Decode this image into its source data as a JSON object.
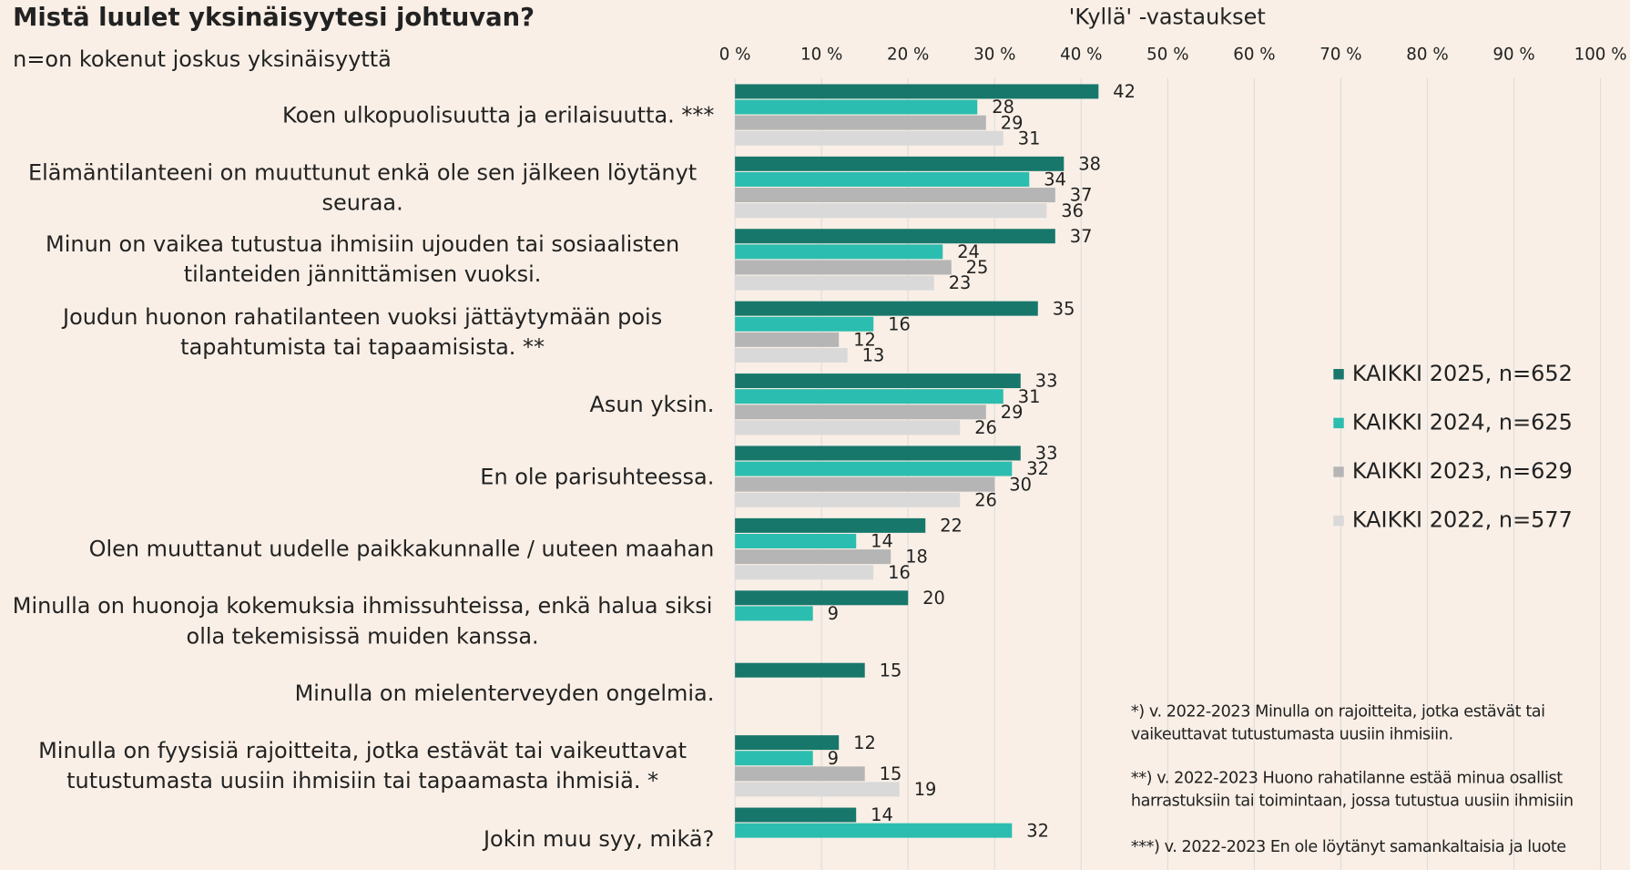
{
  "chart_data": {
    "type": "barh",
    "title": "Mistä luulet yksinäisyytesi johtuvan?",
    "subtitle": "n=on kokenut joskus yksinäisyyttä",
    "x_axis_title": "'Kyllä' -vastaukset",
    "categories": [
      "Koen ulkopuolisuutta ja erilaisuutta. ***",
      "Elämäntilanteeni on muuttunut enkä ole sen jälkeen löytänyt seuraa.",
      "Minun on vaikea tutustua ihmisiin ujouden tai sosiaalisten tilanteiden jännittämisen vuoksi.",
      "Joudun huonon rahatilanteen vuoksi jättäytymään pois tapahtumista tai tapaamisista. **",
      "Asun yksin.",
      "En ole parisuhteessa.",
      "Olen muuttanut uudelle paikkakunnalle / uuteen maahan",
      "Minulla on huonoja kokemuksia ihmissuhteissa, enkä halua siksi olla tekemisissä muiden kanssa.",
      "Minulla on mielenterveyden ongelmia.",
      "Minulla on fyysisiä rajoitteita, jotka estävät tai vaikeuttavat tutustumasta uusiin ihmisiin tai tapaamasta ihmisiä. *",
      "Jokin muu syy, mikä?"
    ],
    "series": [
      {
        "name": "KAIKKI 2025, n=652",
        "color": "#17776b",
        "values": [
          42,
          38,
          37,
          35,
          33,
          33,
          22,
          20,
          15,
          12,
          14
        ]
      },
      {
        "name": "KAIKKI 2024, n=625",
        "color": "#2bbdaf",
        "values": [
          28,
          34,
          24,
          16,
          31,
          32,
          14,
          9,
          null,
          9,
          32
        ]
      },
      {
        "name": "KAIKKI 2023, n=629",
        "color": "#b5b5b5",
        "values": [
          29,
          37,
          25,
          12,
          29,
          30,
          18,
          null,
          null,
          15,
          null
        ]
      },
      {
        "name": "KAIKKI 2022, n=577",
        "color": "#d9d9d9",
        "values": [
          31,
          36,
          23,
          13,
          26,
          26,
          16,
          null,
          null,
          19,
          null
        ]
      }
    ],
    "xlim": [
      0,
      100
    ],
    "xticks": [
      {
        "value": 0,
        "label": "0 %"
      },
      {
        "value": 10,
        "label": "10 %"
      },
      {
        "value": 20,
        "label": "20 %"
      },
      {
        "value": 30,
        "label": "30 %"
      },
      {
        "value": 40,
        "label": "40 %"
      },
      {
        "value": 50,
        "label": "50 %"
      },
      {
        "value": 60,
        "label": "60 %"
      },
      {
        "value": 70,
        "label": "70 %"
      },
      {
        "value": 80,
        "label": "80 %"
      },
      {
        "value": 90,
        "label": "90 %"
      },
      {
        "value": 100,
        "label": "100 %"
      }
    ],
    "grid": true,
    "legend": "right",
    "footnotes": [
      [
        "*) v. 2022-2023 Minulla on rajoitteita, jotka estävät tai",
        "vaikeuttavat tutustumasta uusiin ihmisiin."
      ],
      [
        "**) v. 2022-2023 Huono rahatilanne estää minua osallist",
        "harrastuksiin tai toimintaan, jossa tutustua uusiin ihmisiin"
      ],
      [
        "***) v. 2022-2023 En ole löytänyt samankaltaisia ja luote"
      ]
    ]
  }
}
